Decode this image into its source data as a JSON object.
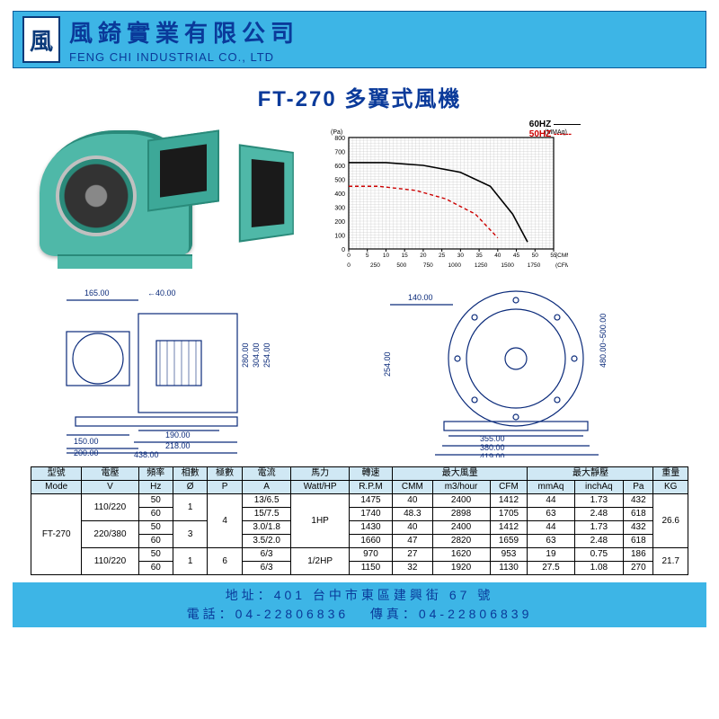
{
  "header": {
    "logo_char": "風",
    "company_zh": "風錡實業有限公司",
    "company_en": "FENG CHI INDUSTRIAL CO., LTD"
  },
  "title": "FT-270 多翼式風機",
  "chart": {
    "label_60": "60HZ ———",
    "label_50": "50HZ ------",
    "y_unit_left": "(Pa)",
    "y_unit_right": "(MMAq)",
    "y_max_pa": 800,
    "y_max_mmaq": 80,
    "y_ticks": [
      0,
      100,
      200,
      300,
      400,
      500,
      600,
      700,
      800
    ],
    "x_label_top": "(CMM)",
    "x_label_bot": "(CFM)",
    "x_ticks_cmm": [
      0,
      5,
      10,
      15,
      20,
      25,
      30,
      35,
      40,
      45,
      50,
      55
    ],
    "x_ticks_cfm": [
      0,
      250,
      500,
      750,
      1000,
      1250,
      1500,
      1750
    ],
    "curve60": [
      [
        0,
        62
      ],
      [
        10,
        62
      ],
      [
        20,
        60
      ],
      [
        30,
        55
      ],
      [
        38,
        45
      ],
      [
        44,
        25
      ],
      [
        48,
        5
      ]
    ],
    "curve50": [
      [
        0,
        45
      ],
      [
        8,
        45
      ],
      [
        18,
        42
      ],
      [
        26,
        36
      ],
      [
        34,
        25
      ],
      [
        40,
        8
      ]
    ],
    "colors": {
      "c60": "#000000",
      "c50": "#cc0000",
      "grid": "#000000",
      "hatch": "#c0c0c0"
    }
  },
  "dimensions": {
    "top_165": "165.00",
    "top_40": "40.00",
    "left_150": "150.00",
    "left_200": "200.00",
    "mid_190": "190.00",
    "mid_218": "218.00",
    "mid_438": "438.00",
    "v_280": "280.00",
    "v_304": "304.00",
    "v_254": "254.00",
    "r_140": "140.00",
    "r_254": "254.00",
    "r_480": "480.00~500.00",
    "rb_355": "355.00",
    "rb_380": "380.00",
    "rb_419": "419.00"
  },
  "table": {
    "head1": [
      "型號",
      "電壓",
      "頻率",
      "相數",
      "極數",
      "電流",
      "馬力",
      "轉速",
      "最大風量",
      "",
      "",
      "最大靜壓",
      "",
      "",
      "重量"
    ],
    "head2": [
      "Mode",
      "V",
      "Hz",
      "Ø",
      "P",
      "A",
      "Watt/HP",
      "R.P.M",
      "CMM",
      "m3/hour",
      "CFM",
      "mmAq",
      "inchAq",
      "Pa",
      "KG"
    ],
    "rows": [
      {
        "mode": "FT-270",
        "v": "110/220",
        "hz": "50",
        "ph": "1",
        "p": "4",
        "a": "13/6.5",
        "hp": "1HP",
        "rpm": "1475",
        "cmm": "40",
        "m3h": "2400",
        "cfm": "1412",
        "mmaq": "44",
        "inaq": "1.73",
        "pa": "432",
        "kg": "26.6"
      },
      {
        "mode": "",
        "v": "",
        "hz": "60",
        "ph": "",
        "p": "",
        "a": "15/7.5",
        "hp": "",
        "rpm": "1740",
        "cmm": "48.3",
        "m3h": "2898",
        "cfm": "1705",
        "mmaq": "63",
        "inaq": "2.48",
        "pa": "618",
        "kg": ""
      },
      {
        "mode": "",
        "v": "220/380",
        "hz": "50",
        "ph": "3",
        "p": "",
        "a": "3.0/1.8",
        "hp": "",
        "rpm": "1430",
        "cmm": "40",
        "m3h": "2400",
        "cfm": "1412",
        "mmaq": "44",
        "inaq": "1.73",
        "pa": "432",
        "kg": ""
      },
      {
        "mode": "",
        "v": "",
        "hz": "60",
        "ph": "",
        "p": "",
        "a": "3.5/2.0",
        "hp": "",
        "rpm": "1660",
        "cmm": "47",
        "m3h": "2820",
        "cfm": "1659",
        "mmaq": "63",
        "inaq": "2.48",
        "pa": "618",
        "kg": ""
      },
      {
        "mode": "",
        "v": "110/220",
        "hz": "50",
        "ph": "1",
        "p": "6",
        "a": "6/3",
        "hp": "1/2HP",
        "rpm": "970",
        "cmm": "27",
        "m3h": "1620",
        "cfm": "953",
        "mmaq": "19",
        "inaq": "0.75",
        "pa": "186",
        "kg": "21.7"
      },
      {
        "mode": "",
        "v": "",
        "hz": "60",
        "ph": "",
        "p": "",
        "a": "6/3",
        "hp": "",
        "rpm": "1150",
        "cmm": "32",
        "m3h": "1920",
        "cfm": "1130",
        "mmaq": "27.5",
        "inaq": "1.08",
        "pa": "270",
        "kg": ""
      }
    ]
  },
  "footer": {
    "addr_label": "地址：",
    "addr": "401 台中市東區建興街 67 號",
    "tel_label": "電話：",
    "tel": "04-22806836",
    "fax_label": "傳真：",
    "fax": "04-22806839"
  }
}
